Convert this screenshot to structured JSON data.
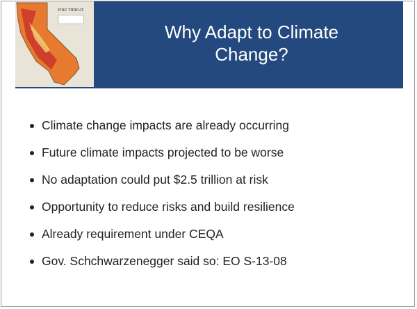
{
  "title": [
    "Why Adapt to Climate",
    "Change?"
  ],
  "map": {
    "label": "FIRE THREAT"
  },
  "bullets": [
    "Climate change impacts are already occurring",
    "Future climate impacts projected to be worse",
    "No adaptation could put $2.5 trillion at risk",
    "Opportunity to reduce risks and build resilience",
    "Already requirement under CEQA",
    "Gov. Schchwarzenegger said so: EO S-13-08"
  ]
}
